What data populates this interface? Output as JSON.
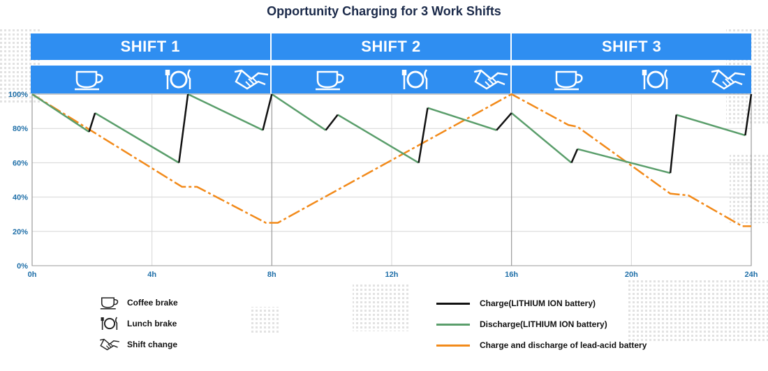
{
  "chart_data": {
    "type": "line",
    "title": "Opportunity Charging for 3 Work Shifts",
    "shifts": [
      "SHIFT 1",
      "SHIFT 2",
      "SHIFT 3"
    ],
    "x_ticks": [
      {
        "value": 0,
        "label": "0h"
      },
      {
        "value": 4,
        "label": "4h"
      },
      {
        "value": 8,
        "label": "8h"
      },
      {
        "value": 12,
        "label": "12h"
      },
      {
        "value": 16,
        "label": "16h"
      },
      {
        "value": 20,
        "label": "20h"
      },
      {
        "value": 24,
        "label": "24h"
      }
    ],
    "y_ticks": [
      {
        "value": 0,
        "label": "0%"
      },
      {
        "value": 20,
        "label": "20%"
      },
      {
        "value": 40,
        "label": "40%"
      },
      {
        "value": 60,
        "label": "60%"
      },
      {
        "value": 80,
        "label": "80%"
      },
      {
        "value": 100,
        "label": "100%"
      }
    ],
    "xlim": [
      0,
      24
    ],
    "ylim": [
      0,
      100
    ],
    "colors": {
      "charge": "#111111",
      "discharge": "#5a9e6b",
      "lead_acid": "#f28a1a",
      "shift_bar": "#2f8ef1",
      "axis_text": "#1f6fa8"
    },
    "break_icons": [
      {
        "shift": 1,
        "icons": [
          "coffee-icon",
          "lunch-icon",
          "handshake-icon"
        ]
      },
      {
        "shift": 2,
        "icons": [
          "coffee-icon",
          "lunch-icon",
          "handshake-icon"
        ]
      },
      {
        "shift": 3,
        "icons": [
          "coffee-icon",
          "lunch-icon",
          "handshake-icon"
        ]
      }
    ],
    "series": [
      {
        "name": "Charge and discharge of lead-acid battery",
        "style": "dash-dot",
        "color_key": "lead_acid",
        "segments": [
          [
            [
              0,
              100
            ],
            [
              5,
              46
            ],
            [
              5.5,
              46
            ],
            [
              7.8,
              25
            ],
            [
              8.2,
              25
            ],
            [
              16,
              100
            ],
            [
              17.9,
              82
            ],
            [
              18.2,
              81
            ],
            [
              21.3,
              42
            ],
            [
              21.9,
              41
            ],
            [
              23.7,
              23
            ],
            [
              24,
              23
            ]
          ]
        ]
      },
      {
        "name": "Discharge(LITHIUM ION battery)",
        "color_key": "discharge",
        "segments": [
          [
            [
              0,
              100
            ],
            [
              1.9,
              78
            ]
          ],
          [
            [
              2.1,
              89
            ],
            [
              4.9,
              60
            ]
          ],
          [
            [
              5.2,
              100
            ],
            [
              7.7,
              79
            ]
          ],
          [
            [
              8,
              100
            ],
            [
              9.8,
              79
            ]
          ],
          [
            [
              10.2,
              88
            ],
            [
              12.9,
              60
            ]
          ],
          [
            [
              13.2,
              92
            ],
            [
              15.5,
              79
            ]
          ],
          [
            [
              16,
              89
            ],
            [
              18,
              60
            ]
          ],
          [
            [
              18.2,
              68
            ],
            [
              21.3,
              54
            ]
          ],
          [
            [
              21.5,
              88
            ],
            [
              23.8,
              76
            ]
          ]
        ]
      },
      {
        "name": "Charge(LITHIUM ION battery)",
        "color_key": "charge",
        "segments": [
          [
            [
              1.9,
              78
            ],
            [
              2.1,
              89
            ]
          ],
          [
            [
              4.9,
              60
            ],
            [
              5.2,
              100
            ]
          ],
          [
            [
              7.7,
              79
            ],
            [
              8,
              100
            ]
          ],
          [
            [
              9.8,
              79
            ],
            [
              10.2,
              88
            ]
          ],
          [
            [
              12.9,
              60
            ],
            [
              13.2,
              92
            ]
          ],
          [
            [
              15.5,
              79
            ],
            [
              16,
              89
            ]
          ],
          [
            [
              18,
              60
            ],
            [
              18.2,
              68
            ]
          ],
          [
            [
              21.3,
              54
            ],
            [
              21.5,
              88
            ]
          ],
          [
            [
              23.8,
              76
            ],
            [
              24,
              100
            ]
          ]
        ]
      }
    ]
  },
  "legend": {
    "left": [
      {
        "icon": "coffee-icon",
        "label": "Coffee brake"
      },
      {
        "icon": "lunch-icon",
        "label": "Lunch brake"
      },
      {
        "icon": "handshake-icon",
        "label": "Shift change"
      }
    ],
    "right": [
      {
        "color_key": "charge",
        "label": "Charge(LITHIUM ION battery)"
      },
      {
        "color_key": "discharge",
        "label": "Discharge(LITHIUM ION battery)"
      },
      {
        "color_key": "lead_acid",
        "label": "Charge and discharge of lead-acid battery"
      }
    ]
  }
}
